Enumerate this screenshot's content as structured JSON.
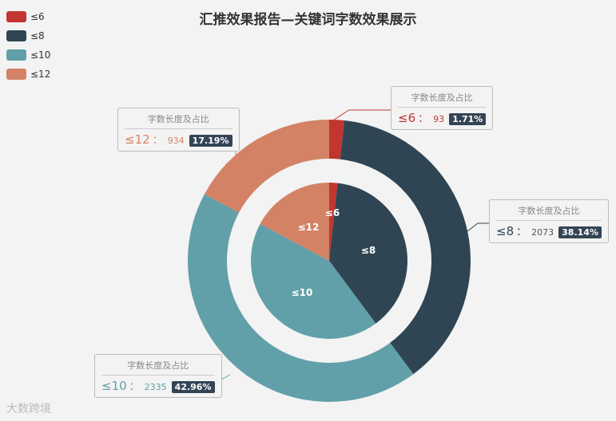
{
  "chart_data": {
    "type": "pie",
    "title": "汇推效果报告—关键词字数效果展示",
    "categories": [
      "≤6",
      "≤8",
      "≤10",
      "≤12"
    ],
    "values": [
      93,
      2073,
      2335,
      934
    ],
    "percents": [
      "1.71%",
      "38.14%",
      "42.96%",
      "17.19%"
    ],
    "colors": [
      "#c23531",
      "#2f4554",
      "#61a0a8",
      "#d48265"
    ],
    "callout_header": "字数长度及占比",
    "separator": "：",
    "legend_position": "top-left",
    "rings": [
      "inner-pie",
      "outer-donut"
    ]
  },
  "watermark": "大数跨境"
}
